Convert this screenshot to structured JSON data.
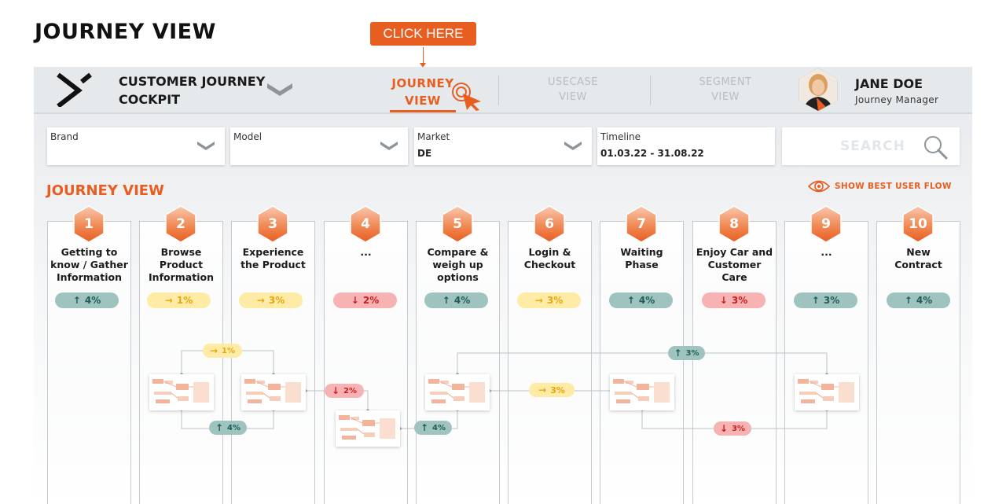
{
  "page_title": "JOURNEY VIEW",
  "callout": {
    "label": "CLICK HERE"
  },
  "app": {
    "name": "CUSTOMER JOURNEY\nCOCKPIT"
  },
  "nav": {
    "tabs": [
      {
        "label": "JOURNEY\nVIEW",
        "active": true
      },
      {
        "label": "USECASE\nVIEW",
        "active": false
      },
      {
        "label": "SEGMENT\nVIEW",
        "active": false
      }
    ]
  },
  "user": {
    "name": "JANE DOE",
    "role": "Journey Manager"
  },
  "filters": [
    {
      "label": "Brand",
      "value": ""
    },
    {
      "label": "Model",
      "value": ""
    },
    {
      "label": "Market",
      "value": "DE"
    },
    {
      "label": "Timeline",
      "value": "01.03.22 - 31.08.22"
    }
  ],
  "search": {
    "placeholder": "SEARCH"
  },
  "section": {
    "title": "JOURNEY VIEW",
    "best_flow_label": "SHOW BEST USER FLOW"
  },
  "colors": {
    "accent": "#e85d20",
    "up": "#9fc4c0",
    "flat": "#fdeba6",
    "down": "#f7b3b3"
  },
  "stages": [
    {
      "number": "1",
      "title": "Getting to\nknow / Gather\nInformation",
      "trend": "up",
      "value": "4%"
    },
    {
      "number": "2",
      "title": "Browse\nProduct\nInformation",
      "trend": "flat",
      "value": "1%"
    },
    {
      "number": "3",
      "title": "Experience\nthe Product",
      "trend": "flat",
      "value": "3%"
    },
    {
      "number": "4",
      "title": "...",
      "trend": "down",
      "value": "2%"
    },
    {
      "number": "5",
      "title": "Compare &\nweigh up\noptions",
      "trend": "up",
      "value": "4%"
    },
    {
      "number": "6",
      "title": "Login &\nCheckout",
      "trend": "flat",
      "value": "3%"
    },
    {
      "number": "7",
      "title": "Waiting\nPhase",
      "trend": "up",
      "value": "4%"
    },
    {
      "number": "8",
      "title": "Enjoy Car and\nCustomer\nCare",
      "trend": "down",
      "value": "3%"
    },
    {
      "number": "9",
      "title": "...",
      "trend": "up",
      "value": "3%"
    },
    {
      "number": "10",
      "title": "New\nContract",
      "trend": "up",
      "value": "4%"
    }
  ],
  "flow_badges": [
    {
      "trend": "flat",
      "value": "1%"
    },
    {
      "trend": "up",
      "value": "4%"
    },
    {
      "trend": "down",
      "value": "2%"
    },
    {
      "trend": "up",
      "value": "4%"
    },
    {
      "trend": "flat",
      "value": "3%"
    },
    {
      "trend": "up",
      "value": "3%"
    },
    {
      "trend": "down",
      "value": "3%"
    }
  ],
  "trend_arrows": {
    "up": "↑",
    "flat": "→",
    "down": "↓"
  }
}
